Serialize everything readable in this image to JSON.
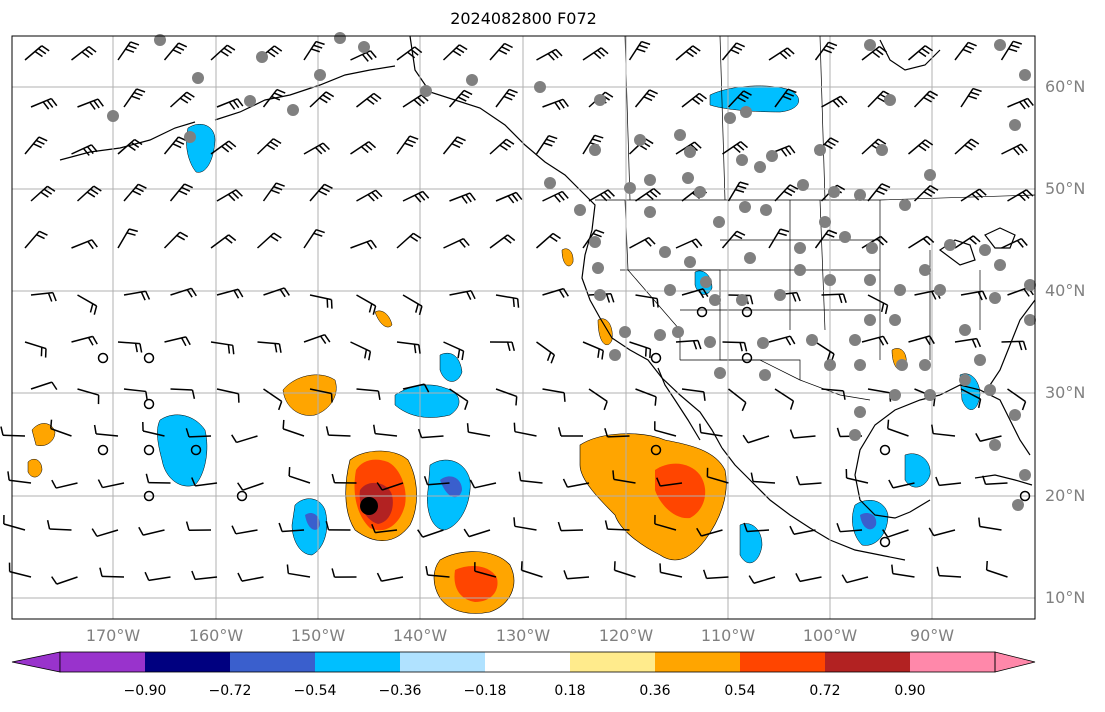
{
  "title": "2024082800 F072",
  "lat_labels": [
    "60°N",
    "50°N",
    "40°N",
    "30°N",
    "20°N",
    "10°N"
  ],
  "lon_labels": [
    "170°W",
    "160°W",
    "150°W",
    "140°W",
    "130°W",
    "120°W",
    "110°W",
    "100°W",
    "90°W"
  ],
  "colorbar": {
    "colors": [
      "#9933cc",
      "#000080",
      "#3a5fcd",
      "#00bfff",
      "#b0e2ff",
      "#ffffff",
      "#ffeb8c",
      "#ffa500",
      "#ff4500",
      "#b22222",
      "#ff88aa"
    ],
    "ticks": [
      "−0.90",
      "−0.72",
      "−0.54",
      "−0.36",
      "−0.18",
      "0.18",
      "0.36",
      "0.54",
      "0.72",
      "0.90"
    ]
  },
  "map_features": {
    "ocean_color": "#ffffff",
    "gridlines": true,
    "wind_barbs": true,
    "gray_dots": true,
    "open_circles": true,
    "storm_marker": "black-dot"
  }
}
